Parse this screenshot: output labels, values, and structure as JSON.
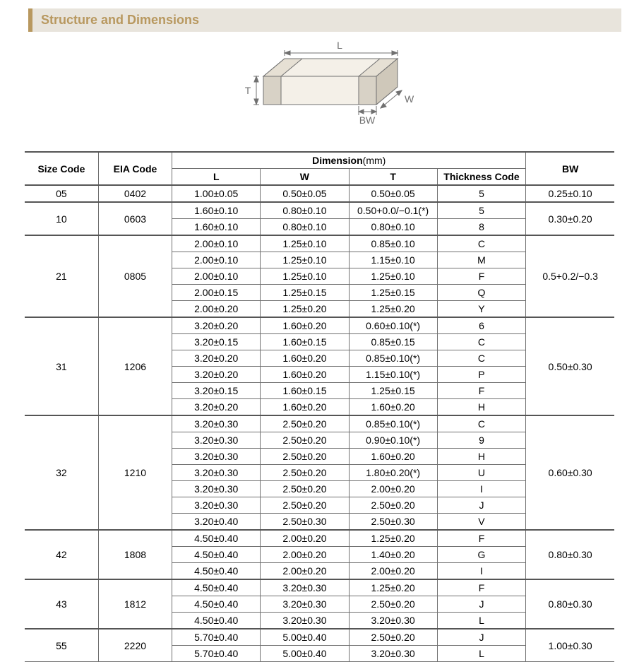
{
  "header": {
    "title": "Structure and Dimensions"
  },
  "diagram": {
    "labels": {
      "L": "L",
      "W": "W",
      "T": "T",
      "BW": "BW"
    },
    "stroke": "#707070",
    "fill_body": "#f4f0e8",
    "fill_term": "#d8d2c6"
  },
  "table": {
    "dimension_header": "Dimension",
    "dimension_unit": "(mm)",
    "columns": {
      "size": "Size Code",
      "eia": "EIA Code",
      "L": "L",
      "W": "W",
      "T": "T",
      "thick": "Thickness  Code",
      "BW": "BW"
    },
    "groups": [
      {
        "size": "05",
        "eia": "0402",
        "bw": "0.25±0.10",
        "rows": [
          {
            "L": "1.00±0.05",
            "W": "0.50±0.05",
            "T": "0.50±0.05",
            "thick": "5"
          }
        ]
      },
      {
        "size": "10",
        "eia": "0603",
        "bw": "0.30±0.20",
        "rows": [
          {
            "L": "1.60±0.10",
            "W": "0.80±0.10",
            "T": "0.50+0.0/−0.1(*)",
            "thick": "5"
          },
          {
            "L": "1.60±0.10",
            "W": "0.80±0.10",
            "T": "0.80±0.10",
            "thick": "8"
          }
        ]
      },
      {
        "size": "21",
        "eia": "0805",
        "bw": "0.5+0.2/−0.3",
        "rows": [
          {
            "L": "2.00±0.10",
            "W": "1.25±0.10",
            "T": "0.85±0.10",
            "thick": "C"
          },
          {
            "L": "2.00±0.10",
            "W": "1.25±0.10",
            "T": "1.15±0.10",
            "thick": "M"
          },
          {
            "L": "2.00±0.10",
            "W": "1.25±0.10",
            "T": "1.25±0.10",
            "thick": "F"
          },
          {
            "L": "2.00±0.15",
            "W": "1.25±0.15",
            "T": "1.25±0.15",
            "thick": "Q"
          },
          {
            "L": "2.00±0.20",
            "W": "1.25±0.20",
            "T": "1.25±0.20",
            "thick": "Y"
          }
        ]
      },
      {
        "size": "31",
        "eia": "1206",
        "bw": "0.50±0.30",
        "rows": [
          {
            "L": "3.20±0.20",
            "W": "1.60±0.20",
            "T": "0.60±0.10(*)",
            "thick": "6"
          },
          {
            "L": "3.20±0.15",
            "W": "1.60±0.15",
            "T": "0.85±0.15",
            "thick": "C"
          },
          {
            "L": "3.20±0.20",
            "W": "1.60±0.20",
            "T": "0.85±0.10(*)",
            "thick": "C"
          },
          {
            "L": "3.20±0.20",
            "W": "1.60±0.20",
            "T": "1.15±0.10(*)",
            "thick": "P"
          },
          {
            "L": "3.20±0.15",
            "W": "1.60±0.15",
            "T": "1.25±0.15",
            "thick": "F"
          },
          {
            "L": "3.20±0.20",
            "W": "1.60±0.20",
            "T": "1.60±0.20",
            "thick": "H"
          }
        ]
      },
      {
        "size": "32",
        "eia": "1210",
        "bw": "0.60±0.30",
        "rows": [
          {
            "L": "3.20±0.30",
            "W": "2.50±0.20",
            "T": "0.85±0.10(*)",
            "thick": "C"
          },
          {
            "L": "3.20±0.30",
            "W": "2.50±0.20",
            "T": "0.90±0.10(*)",
            "thick": "9"
          },
          {
            "L": "3.20±0.30",
            "W": "2.50±0.20",
            "T": "1.60±0.20",
            "thick": "H"
          },
          {
            "L": "3.20±0.30",
            "W": "2.50±0.20",
            "T": "1.80±0.20(*)",
            "thick": "U"
          },
          {
            "L": "3.20±0.30",
            "W": "2.50±0.20",
            "T": "2.00±0.20",
            "thick": "I"
          },
          {
            "L": "3.20±0.30",
            "W": "2.50±0.20",
            "T": "2.50±0.20",
            "thick": "J"
          },
          {
            "L": "3.20±0.40",
            "W": "2.50±0.30",
            "T": "2.50±0.30",
            "thick": "V"
          }
        ]
      },
      {
        "size": "42",
        "eia": "1808",
        "bw": "0.80±0.30",
        "rows": [
          {
            "L": "4.50±0.40",
            "W": "2.00±0.20",
            "T": "1.25±0.20",
            "thick": "F"
          },
          {
            "L": "4.50±0.40",
            "W": "2.00±0.20",
            "T": "1.40±0.20",
            "thick": "G"
          },
          {
            "L": "4.50±0.40",
            "W": "2.00±0.20",
            "T": "2.00±0.20",
            "thick": "I"
          }
        ]
      },
      {
        "size": "43",
        "eia": "1812",
        "bw": "0.80±0.30",
        "rows": [
          {
            "L": "4.50±0.40",
            "W": "3.20±0.30",
            "T": "1.25±0.20",
            "thick": "F"
          },
          {
            "L": "4.50±0.40",
            "W": "3.20±0.30",
            "T": "2.50±0.20",
            "thick": "J"
          },
          {
            "L": "4.50±0.40",
            "W": "3.20±0.30",
            "T": "3.20±0.30",
            "thick": "L"
          }
        ]
      },
      {
        "size": "55",
        "eia": "2220",
        "bw": "1.00±0.30",
        "rows": [
          {
            "L": "5.70±0.40",
            "W": "5.00±0.40",
            "T": "2.50±0.20",
            "thick": "J"
          },
          {
            "L": "5.70±0.40",
            "W": "5.00±0.40",
            "T": "3.20±0.30",
            "thick": "L"
          }
        ]
      }
    ]
  }
}
